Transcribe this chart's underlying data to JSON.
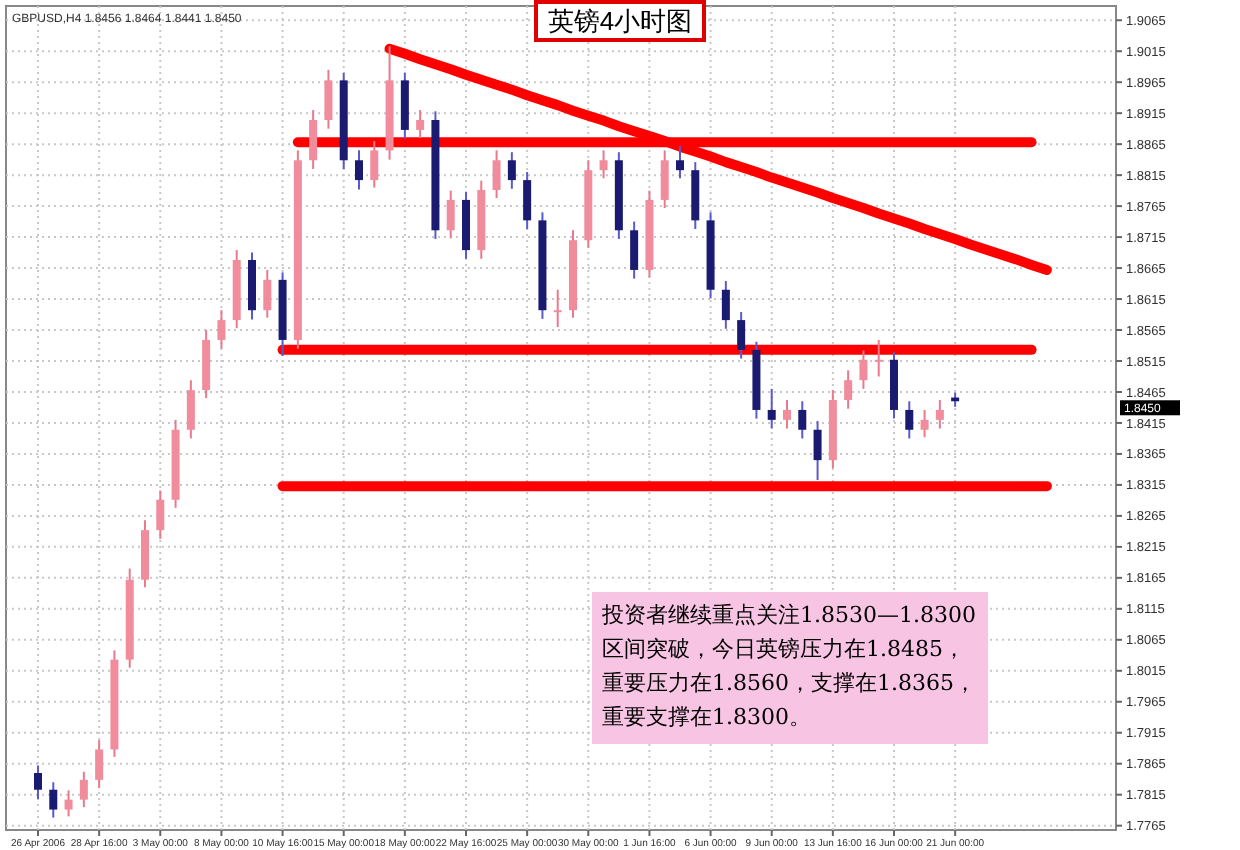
{
  "chart_data": {
    "type": "candlestick",
    "title": "英镑4小时图",
    "categories": [
      "26 Apr 2006",
      null,
      null,
      null,
      "28 Apr 16:00",
      null,
      null,
      null,
      "3 May 00:00",
      null,
      null,
      null,
      "8 May 00:00",
      null,
      null,
      null,
      "10 May 16:00",
      null,
      null,
      null,
      "15 May 00:00",
      null,
      null,
      null,
      "18 May 00:00",
      null,
      null,
      null,
      "22 May 16:00",
      null,
      null,
      null,
      "25 May 00:00",
      null,
      null,
      null,
      "30 May 00:00",
      null,
      null,
      null,
      "1 Jun 16:00",
      null,
      null,
      null,
      "6 Jun 00:00",
      null,
      null,
      null,
      "9 Jun 00:00",
      null,
      null,
      null,
      "13 Jun 16:00",
      null,
      null,
      null,
      "16 Jun 00:00",
      null,
      null,
      null,
      "21 Jun 00:00",
      null,
      null,
      null,
      null,
      null,
      null,
      null,
      null,
      null,
      null
    ],
    "ohlc": [
      [
        1.785,
        1.7862,
        1.7808,
        1.7823
      ],
      [
        1.7823,
        1.7835,
        1.7778,
        1.7791
      ],
      [
        1.7791,
        1.7822,
        1.778,
        1.7807
      ],
      [
        1.7807,
        1.7852,
        1.7795,
        1.7839
      ],
      [
        1.7839,
        1.7903,
        1.7826,
        1.7888
      ],
      [
        1.7888,
        1.8048,
        1.7876,
        1.8033
      ],
      [
        1.8033,
        1.818,
        1.802,
        1.8162
      ],
      [
        1.8162,
        1.8258,
        1.815,
        1.8242
      ],
      [
        1.8242,
        1.8306,
        1.8228,
        1.8291
      ],
      [
        1.8291,
        1.842,
        1.8278,
        1.8404
      ],
      [
        1.8404,
        1.8484,
        1.839,
        1.8468
      ],
      [
        1.8468,
        1.8565,
        1.8455,
        1.8549
      ],
      [
        1.8549,
        1.8597,
        1.8535,
        1.8581
      ],
      [
        1.8581,
        1.8694,
        1.8568,
        1.8678
      ],
      [
        1.8678,
        1.869,
        1.8582,
        1.8597
      ],
      [
        1.8597,
        1.8662,
        1.8585,
        1.8646
      ],
      [
        1.8646,
        1.8658,
        1.8523,
        1.8549
      ],
      [
        1.8549,
        1.8855,
        1.8535,
        1.8839
      ],
      [
        1.8839,
        1.892,
        1.8825,
        1.8904
      ],
      [
        1.8904,
        1.8985,
        1.889,
        1.8968
      ],
      [
        1.8968,
        1.898,
        1.8825,
        1.8839
      ],
      [
        1.8839,
        1.8855,
        1.8792,
        1.8807
      ],
      [
        1.8807,
        1.887,
        1.8795,
        1.8855
      ],
      [
        1.8855,
        1.9023,
        1.884,
        1.8968
      ],
      [
        1.8968,
        1.898,
        1.8874,
        1.8888
      ],
      [
        1.8888,
        1.892,
        1.8875,
        1.8904
      ],
      [
        1.8904,
        1.8918,
        1.8712,
        1.8726
      ],
      [
        1.8726,
        1.879,
        1.8713,
        1.8775
      ],
      [
        1.8775,
        1.8788,
        1.868,
        1.8694
      ],
      [
        1.8694,
        1.8806,
        1.868,
        1.8791
      ],
      [
        1.8791,
        1.8855,
        1.8778,
        1.8839
      ],
      [
        1.8839,
        1.8852,
        1.8793,
        1.8807
      ],
      [
        1.8807,
        1.882,
        1.8728,
        1.8742
      ],
      [
        1.8742,
        1.8755,
        1.8583,
        1.8597
      ],
      [
        1.8597,
        1.863,
        1.857,
        1.8597
      ],
      [
        1.8597,
        1.8726,
        1.8585,
        1.871
      ],
      [
        1.871,
        1.8839,
        1.8698,
        1.8823
      ],
      [
        1.8823,
        1.8855,
        1.881,
        1.8839
      ],
      [
        1.8839,
        1.8852,
        1.8712,
        1.8726
      ],
      [
        1.8726,
        1.874,
        1.8648,
        1.8662
      ],
      [
        1.8662,
        1.879,
        1.865,
        1.8775
      ],
      [
        1.8775,
        1.8855,
        1.8762,
        1.8839
      ],
      [
        1.8839,
        1.8862,
        1.881,
        1.8823
      ],
      [
        1.8823,
        1.8836,
        1.8728,
        1.8742
      ],
      [
        1.8742,
        1.8755,
        1.8616,
        1.863
      ],
      [
        1.863,
        1.8644,
        1.8567,
        1.8581
      ],
      [
        1.8581,
        1.8594,
        1.8519,
        1.8533
      ],
      [
        1.8533,
        1.8546,
        1.8422,
        1.8436
      ],
      [
        1.8436,
        1.847,
        1.8406,
        1.842
      ],
      [
        1.842,
        1.8452,
        1.8406,
        1.8436
      ],
      [
        1.8436,
        1.845,
        1.839,
        1.8404
      ],
      [
        1.8404,
        1.8418,
        1.8323,
        1.8355
      ],
      [
        1.8355,
        1.8468,
        1.8342,
        1.8452
      ],
      [
        1.8452,
        1.85,
        1.8438,
        1.8484
      ],
      [
        1.8484,
        1.8532,
        1.847,
        1.8517
      ],
      [
        1.8517,
        1.8549,
        1.849,
        1.8517
      ],
      [
        1.8517,
        1.853,
        1.8422,
        1.8436
      ],
      [
        1.8436,
        1.845,
        1.839,
        1.8404
      ],
      [
        1.8404,
        1.8436,
        1.8392,
        1.842
      ],
      [
        1.842,
        1.8452,
        1.8406,
        1.8436
      ],
      [
        1.8456,
        1.8464,
        1.8441,
        1.845
      ],
      null,
      null,
      null,
      null,
      null,
      null,
      null,
      null,
      null,
      null
    ],
    "series": [
      {
        "type": "line",
        "color": "#ff0000",
        "values": [
          null,
          null,
          null,
          null,
          null,
          null,
          null,
          null,
          null,
          null,
          null,
          null,
          null,
          null,
          null,
          null,
          null,
          1.8868,
          1.8868,
          1.8868,
          1.8868,
          1.8868,
          1.8868,
          1.8868,
          1.8868,
          1.8868,
          1.8868,
          1.8868,
          1.8868,
          1.8868,
          1.8868,
          1.8868,
          1.8868,
          1.8868,
          1.8868,
          1.8868,
          1.8868,
          1.8868,
          1.8868,
          1.8868,
          1.8868,
          1.8868,
          1.8868,
          1.8868,
          1.8868,
          1.8868,
          1.8868,
          1.8868,
          1.8868,
          1.8868,
          1.8868,
          1.8868,
          1.8868,
          1.8868,
          1.8868,
          1.8868,
          1.8868,
          1.8868,
          1.8868,
          1.8868,
          1.8868,
          1.8868,
          1.8868,
          1.8868,
          1.8868,
          1.8868,
          null,
          null,
          null,
          null,
          null
        ]
      },
      {
        "type": "line",
        "color": "#ff0000",
        "values": [
          null,
          null,
          null,
          null,
          null,
          null,
          null,
          null,
          null,
          null,
          null,
          null,
          null,
          null,
          null,
          null,
          null,
          null,
          null,
          null,
          null,
          null,
          null,
          1.9019,
          1.9011,
          1.9002,
          1.8994,
          1.8986,
          1.8977,
          1.8969,
          1.8961,
          1.8953,
          1.8944,
          1.8936,
          1.8928,
          1.8919,
          1.8911,
          1.8903,
          1.8894,
          1.8886,
          1.8878,
          1.887,
          1.8861,
          1.8853,
          1.8845,
          1.8836,
          1.8828,
          1.882,
          1.8811,
          1.8803,
          1.8795,
          1.8787,
          1.8778,
          1.877,
          1.8762,
          1.8753,
          1.8745,
          1.8737,
          1.8728,
          1.872,
          1.8712,
          1.8703,
          1.8695,
          1.8687,
          1.8679,
          1.867,
          1.8662,
          null,
          null,
          null,
          null
        ]
      },
      {
        "type": "line",
        "color": "#ff0000",
        "values": [
          null,
          null,
          null,
          null,
          null,
          null,
          null,
          null,
          null,
          null,
          null,
          null,
          null,
          null,
          null,
          null,
          1.8533,
          1.8533,
          1.8533,
          1.8533,
          1.8533,
          1.8533,
          1.8533,
          1.8533,
          1.8533,
          1.8533,
          1.8533,
          1.8533,
          1.8533,
          1.8533,
          1.8533,
          1.8533,
          1.8533,
          1.8533,
          1.8533,
          1.8533,
          1.8533,
          1.8533,
          1.8533,
          1.8533,
          1.8533,
          1.8533,
          1.8533,
          1.8533,
          1.8533,
          1.8533,
          1.8533,
          1.8533,
          1.8533,
          1.8533,
          1.8533,
          1.8533,
          1.8533,
          1.8533,
          1.8533,
          1.8533,
          1.8533,
          1.8533,
          1.8533,
          1.8533,
          1.8533,
          1.8533,
          1.8533,
          1.8533,
          1.8533,
          1.8533,
          null,
          null,
          null,
          null,
          null
        ]
      },
      {
        "type": "line",
        "color": "#ff0000",
        "values": [
          null,
          null,
          null,
          null,
          null,
          null,
          null,
          null,
          null,
          null,
          null,
          null,
          null,
          null,
          null,
          null,
          1.8313,
          1.8313,
          1.8313,
          1.8313,
          1.8313,
          1.8313,
          1.8313,
          1.8313,
          1.8313,
          1.8313,
          1.8313,
          1.8313,
          1.8313,
          1.8313,
          1.8313,
          1.8313,
          1.8313,
          1.8313,
          1.8313,
          1.8313,
          1.8313,
          1.8313,
          1.8313,
          1.8313,
          1.8313,
          1.8313,
          1.8313,
          1.8313,
          1.8313,
          1.8313,
          1.8313,
          1.8313,
          1.8313,
          1.8313,
          1.8313,
          1.8313,
          1.8313,
          1.8313,
          1.8313,
          1.8313,
          1.8313,
          1.8313,
          1.8313,
          1.8313,
          1.8313,
          1.8313,
          1.8313,
          1.8313,
          1.8313,
          1.8313,
          1.8313,
          null,
          null,
          null,
          null
        ]
      }
    ],
    "ylim": [
      1.7758,
      1.9088
    ],
    "yticks": [
      1.7765,
      1.7815,
      1.7865,
      1.7915,
      1.7965,
      1.8015,
      1.8065,
      1.8115,
      1.8165,
      1.8215,
      1.8265,
      1.8315,
      1.8365,
      1.8415,
      1.8465,
      1.8515,
      1.8565,
      1.8615,
      1.8665,
      1.8715,
      1.8765,
      1.8815,
      1.8865,
      1.8915,
      1.8965,
      1.9015,
      1.9065
    ],
    "grid": true,
    "annotations": [
      "GBPUSD,H4 1.8456 1.8464 1.8441 1.8450",
      "1.8450",
      "投资者继续重点关注1.8530—1.8300区间突破，今日英镑压力在1.8485，重要压力在1.8560，支撑在1.8365，重要支撑在1.8300。"
    ]
  }
}
